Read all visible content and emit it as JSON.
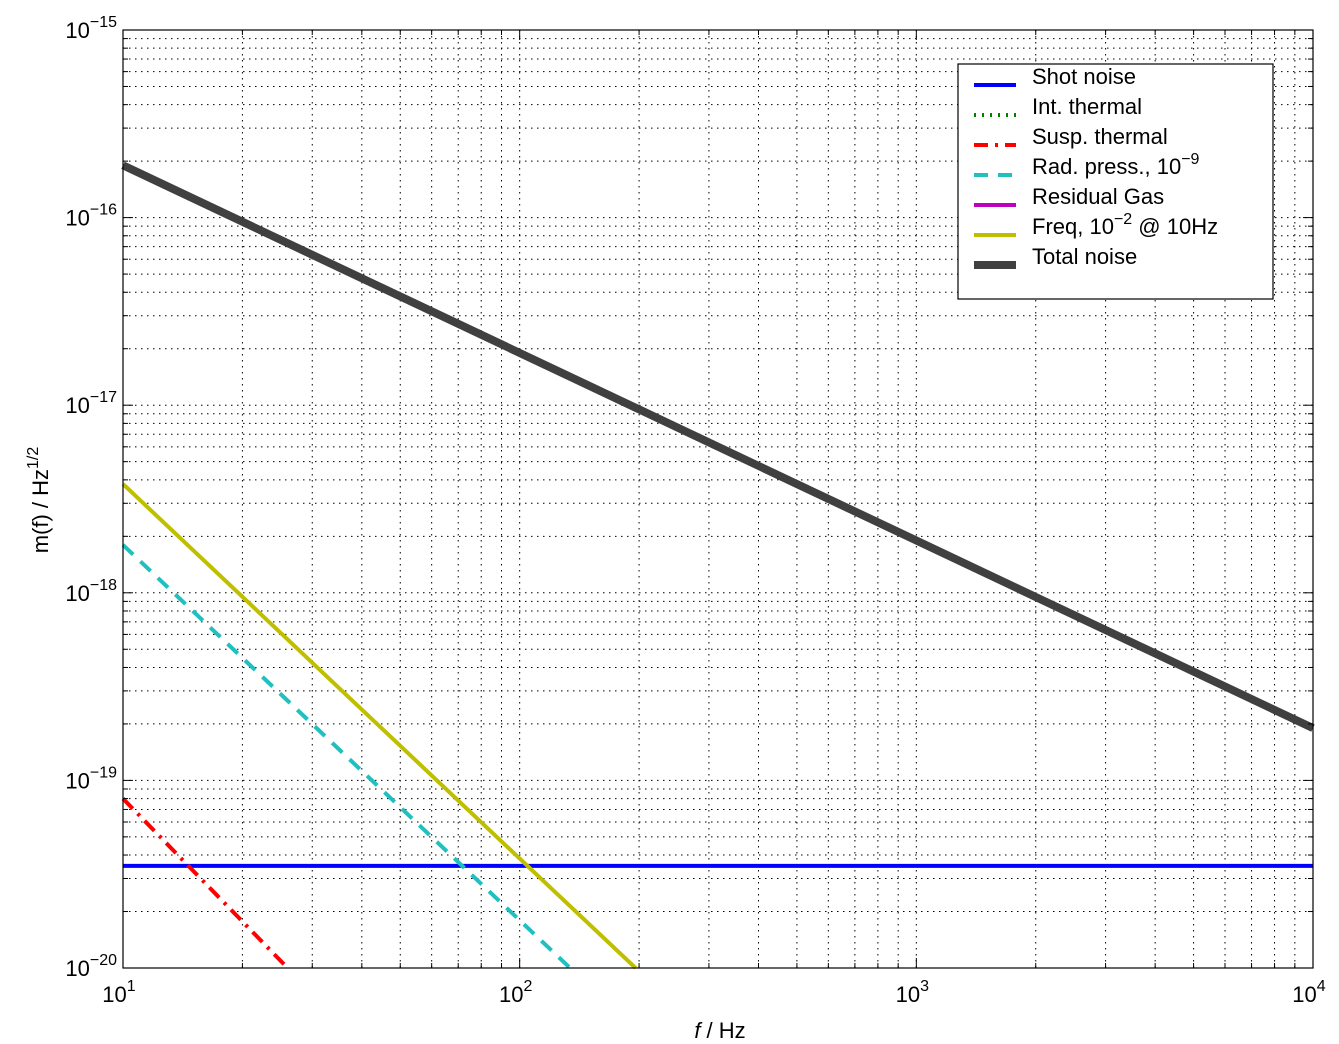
{
  "chart_data": {
    "type": "line",
    "xscale": "log",
    "yscale": "log",
    "xlim": [
      10,
      10000
    ],
    "ylim": [
      1e-20,
      1e-15
    ],
    "grid": true,
    "legend_position": "top-right",
    "xlabel": {
      "italic": "f",
      "rest": " / Hz"
    },
    "ylabel": {
      "base": "m(f) / Hz",
      "sup": "1/2"
    },
    "x_ticks": [
      {
        "value": 10,
        "base": "10",
        "exp": "1"
      },
      {
        "value": 100,
        "base": "10",
        "exp": "2"
      },
      {
        "value": 1000,
        "base": "10",
        "exp": "3"
      },
      {
        "value": 10000,
        "base": "10",
        "exp": "4"
      }
    ],
    "y_ticks": [
      {
        "value": 1e-20,
        "base": "10",
        "exp": "−20"
      },
      {
        "value": 1e-19,
        "base": "10",
        "exp": "−19"
      },
      {
        "value": 1e-18,
        "base": "10",
        "exp": "−18"
      },
      {
        "value": 1e-17,
        "base": "10",
        "exp": "−17"
      },
      {
        "value": 1e-16,
        "base": "10",
        "exp": "−16"
      },
      {
        "value": 1e-15,
        "base": "10",
        "exp": "−15"
      }
    ],
    "series": [
      {
        "name": "Shot noise",
        "color": "#0000ff",
        "style": "solid",
        "x": [
          10,
          10000
        ],
        "y": [
          3.5e-20,
          3.5e-20
        ]
      },
      {
        "name": "Int. thermal",
        "color": "#008000",
        "style": "dotted",
        "x": [],
        "y": []
      },
      {
        "name": "Susp. thermal",
        "color": "#ff0000",
        "style": "dashdot",
        "x": [
          10,
          26
        ],
        "y": [
          8e-20,
          1e-20
        ]
      },
      {
        "name": "Rad. press., 10",
        "name_sup": "−9",
        "color": "#20c0c0",
        "style": "dashed",
        "x": [
          10,
          134
        ],
        "y": [
          1.8e-18,
          1e-20
        ]
      },
      {
        "name": "Residual Gas",
        "color": "#bf00bf",
        "style": "solid",
        "x": [],
        "y": []
      },
      {
        "name": "Freq, 10",
        "name_sup": "−2",
        "name_after": " @ 10Hz",
        "color": "#bfbf00",
        "style": "solid",
        "x": [
          10,
          196
        ],
        "y": [
          3.8e-18,
          1e-20
        ]
      },
      {
        "name": "Total noise",
        "color": "#404040",
        "style": "solid",
        "thick": true,
        "x": [
          10,
          10000
        ],
        "y": [
          1.9e-16,
          1.9e-19
        ]
      }
    ]
  }
}
